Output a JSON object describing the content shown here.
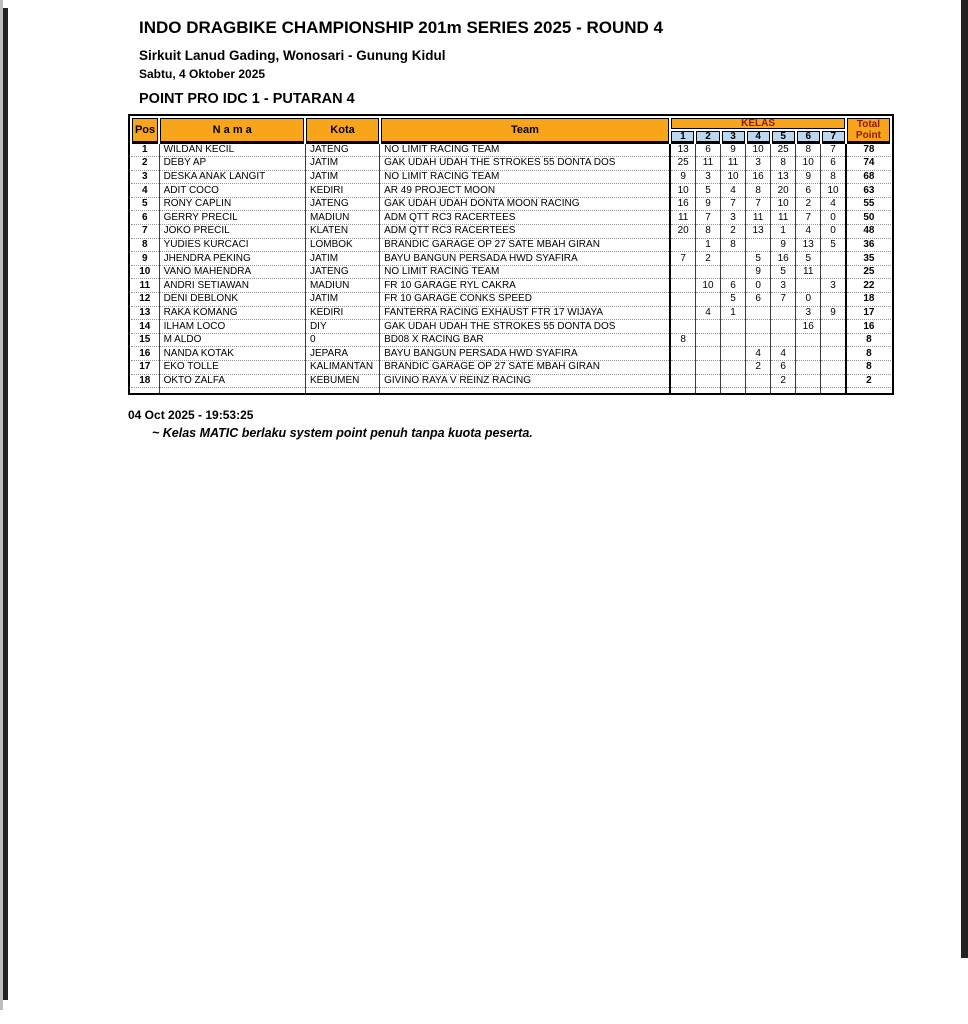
{
  "page": {
    "title": "INDO DRAGBIKE CHAMPIONSHIP 201m SERIES 2025 - ROUND 4",
    "subtitle": "Sirkuit Lanud Gading, Wonosari - Gunung Kidul",
    "date_line": "Sabtu, 4 Oktober 2025",
    "section_title": "POINT PRO IDC 1 - PUTARAN 4",
    "footer_timestamp": "04 Oct 2025 - 19:53:25",
    "footer_note": "~ Kelas MATIC berlaku system point penuh tanpa kuota peserta."
  },
  "colors": {
    "header_bg": "#F9A51B",
    "subheader_bg": "#BDD7EE",
    "kelas_header_text": "#8B1A10",
    "edge_dark": "#222222"
  },
  "table": {
    "headers": {
      "pos": "Pos",
      "nama": "N a m a",
      "kota": "Kota",
      "team": "Team",
      "kelas": "KELAS",
      "kelas_cols": [
        "1",
        "2",
        "3",
        "4",
        "5",
        "6",
        "7"
      ],
      "total_line1": "Total",
      "total_line2": "Point"
    },
    "rows": [
      {
        "pos": "1",
        "nama": "WILDAN KECIL",
        "kota": "JATENG",
        "team": "NO LIMIT RACING TEAM",
        "kelas": [
          "13",
          "6",
          "9",
          "10",
          "25",
          "8",
          "7"
        ],
        "total": "78"
      },
      {
        "pos": "2",
        "nama": "DEBY AP",
        "kota": "JATIM",
        "team": "GAK UDAH UDAH THE STROKES 55 DONTA DOS",
        "kelas": [
          "25",
          "11",
          "11",
          "3",
          "8",
          "10",
          "6"
        ],
        "total": "74"
      },
      {
        "pos": "3",
        "nama": "DESKA ANAK LANGIT",
        "kota": "JATIM",
        "team": "NO LIMIT RACING TEAM",
        "kelas": [
          "9",
          "3",
          "10",
          "16",
          "13",
          "9",
          "8"
        ],
        "total": "68"
      },
      {
        "pos": "4",
        "nama": "ADIT COCO",
        "kota": "KEDIRI",
        "team": "AR 49 PROJECT MOON",
        "kelas": [
          "10",
          "5",
          "4",
          "8",
          "20",
          "6",
          "10"
        ],
        "total": "63"
      },
      {
        "pos": "5",
        "nama": "RONY CAPLIN",
        "kota": "JATENG",
        "team": "GAK UDAH UDAH DONTA MOON RACING",
        "kelas": [
          "16",
          "9",
          "7",
          "7",
          "10",
          "2",
          "4"
        ],
        "total": "55"
      },
      {
        "pos": "6",
        "nama": "GERRY PRECIL",
        "kota": "MADIUN",
        "team": "ADM QTT RC3 RACERTEES",
        "kelas": [
          "11",
          "7",
          "3",
          "11",
          "11",
          "7",
          "0"
        ],
        "total": "50"
      },
      {
        "pos": "7",
        "nama": "JOKO PRECIL",
        "kota": "KLATEN",
        "team": "ADM QTT RC3 RACERTEES",
        "kelas": [
          "20",
          "8",
          "2",
          "13",
          "1",
          "4",
          "0"
        ],
        "total": "48"
      },
      {
        "pos": "8",
        "nama": "YUDIES KURCACI",
        "kota": "LOMBOK",
        "team": "BRANDIC GARAGE OP 27 SATE MBAH GIRAN",
        "kelas": [
          "",
          "1",
          "8",
          "",
          "9",
          "13",
          "5"
        ],
        "total": "36"
      },
      {
        "pos": "9",
        "nama": "JHENDRA PEKING",
        "kota": "JATIM",
        "team": "BAYU BANGUN PERSADA HWD SYAFIRA",
        "kelas": [
          "7",
          "2",
          "",
          "5",
          "16",
          "5",
          ""
        ],
        "total": "35"
      },
      {
        "pos": "10",
        "nama": "VANO MAHENDRA",
        "kota": "JATENG",
        "team": "NO LIMIT RACING TEAM",
        "kelas": [
          "",
          "",
          "",
          "9",
          "5",
          "11",
          ""
        ],
        "total": "25"
      },
      {
        "pos": "11",
        "nama": "ANDRI SETIAWAN",
        "kota": "MADIUN",
        "team": "FR 10 GARAGE RYL CAKRA",
        "kelas": [
          "",
          "10",
          "6",
          "0",
          "3",
          "",
          "3"
        ],
        "total": "22"
      },
      {
        "pos": "12",
        "nama": "DENI DEBLONK",
        "kota": "JATIM",
        "team": "FR 10 GARAGE CONKS SPEED",
        "kelas": [
          "",
          "",
          "5",
          "6",
          "7",
          "0",
          ""
        ],
        "total": "18"
      },
      {
        "pos": "13",
        "nama": "RAKA KOMANG",
        "kota": "KEDIRI",
        "team": "FANTERRA RACING EXHAUST FTR 17 WIJAYA",
        "kelas": [
          "",
          "4",
          "1",
          "",
          "",
          "3",
          "9"
        ],
        "total": "17"
      },
      {
        "pos": "14",
        "nama": "ILHAM LOCO",
        "kota": "DIY",
        "team": "GAK UDAH UDAH THE STROKES 55 DONTA DOS",
        "kelas": [
          "",
          "",
          "",
          "",
          "",
          "16",
          ""
        ],
        "total": "16"
      },
      {
        "pos": "15",
        "nama": "M ALDO",
        "kota": "0",
        "team": "BD08 X RACING BAR",
        "kelas": [
          "8",
          "",
          "",
          "",
          "",
          "",
          ""
        ],
        "total": "8"
      },
      {
        "pos": "16",
        "nama": "NANDA KOTAK",
        "kota": "JEPARA",
        "team": "BAYU BANGUN PERSADA HWD SYAFIRA",
        "kelas": [
          "",
          "",
          "",
          "4",
          "4",
          "",
          ""
        ],
        "total": "8"
      },
      {
        "pos": "17",
        "nama": "EKO TOLLE",
        "kota": "KALIMANTAN",
        "team": "BRANDIC GARAGE OP 27 SATE MBAH GIRAN",
        "kelas": [
          "",
          "",
          "",
          "2",
          "6",
          "",
          ""
        ],
        "total": "8"
      },
      {
        "pos": "18",
        "nama": "OKTO ZALFA",
        "kota": "KEBUMEN",
        "team": "GIVINO RAYA V REINZ RACING",
        "kelas": [
          "",
          "",
          "",
          "",
          "2",
          "",
          ""
        ],
        "total": "2"
      }
    ],
    "trailing_empty_row": true
  }
}
